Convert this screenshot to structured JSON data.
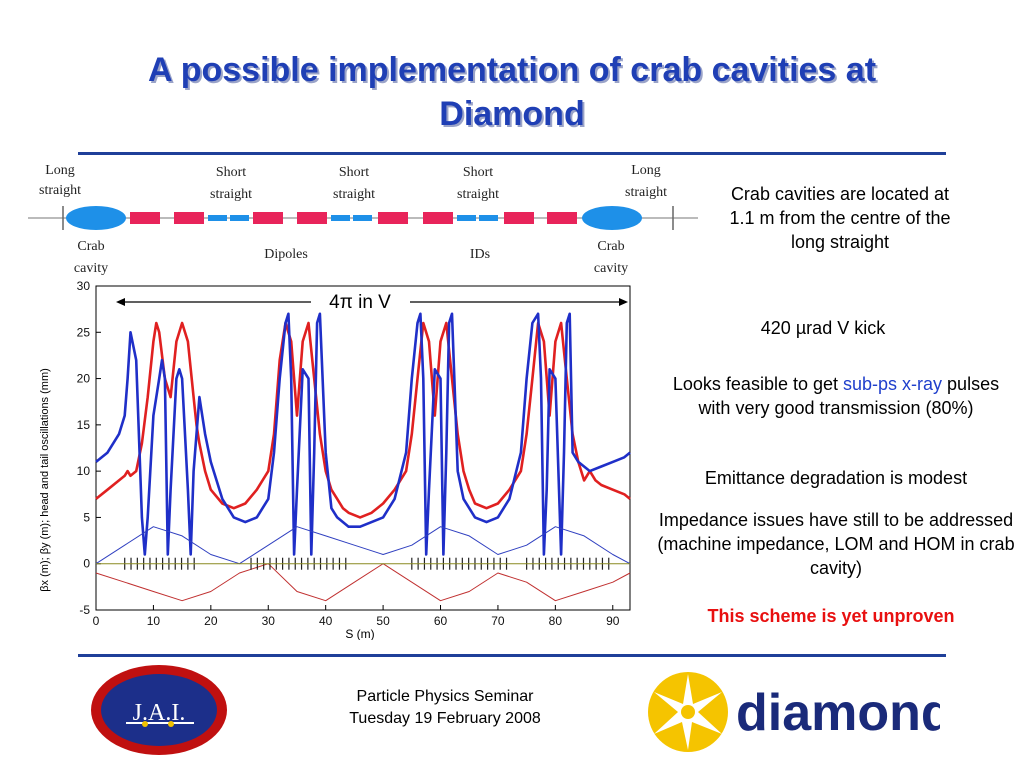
{
  "slide": {
    "title_line1": "A possible implementation of crab cavities at",
    "title_line2": "Diamond"
  },
  "lattice": {
    "labels": {
      "long_straight_left_1": "Long",
      "long_straight_left_2": "straight",
      "short_straight_1a": "Short",
      "short_straight_1b": "straight",
      "short_straight_2a": "Short",
      "short_straight_2b": "straight",
      "short_straight_3a": "Short",
      "short_straight_3b": "straight",
      "long_straight_right_1": "Long",
      "long_straight_right_2": "straight",
      "crab_left_1": "Crab",
      "crab_left_2": "cavity",
      "dipoles": "Dipoles",
      "ids": "IDs",
      "crab_right_1": "Crab",
      "crab_right_2": "cavity"
    },
    "colors": {
      "cavity": "#1e90e8",
      "dipole": "#e8245a",
      "quad": "#1e90e8"
    }
  },
  "annotations": {
    "crab_location": "Crab cavities are located at 1.1 m from the centre of the long straight",
    "kick": "420 µrad V kick",
    "feasible_pre": "Looks feasible to get ",
    "feasible_highlight": "sub-ps x-ray",
    "feasible_post": " pulses with very good transmission (80%)",
    "emittance": "Emittance degradation is modest",
    "impedance": "Impedance issues have still to be addressed (machine impedance, LOM and HOM in crab cavity)",
    "unproven": "This scheme is yet unproven"
  },
  "chart_data": {
    "type": "line",
    "xlabel": "S (m)",
    "ylabel": "βx (m); βy (m); head and tail oscillations (mm)",
    "xlim": [
      0,
      93
    ],
    "ylim": [
      -5,
      30
    ],
    "xticks": [
      0,
      10,
      20,
      30,
      40,
      50,
      60,
      70,
      80,
      90
    ],
    "yticks": [
      -5,
      0,
      5,
      10,
      15,
      20,
      25,
      30
    ],
    "span_label": "4π in V",
    "series": [
      {
        "color": "#e02020",
        "x": [
          0,
          2,
          4,
          5,
          5.5,
          6,
          7,
          8,
          9,
          10,
          10.5,
          11,
          12,
          13,
          14,
          15,
          16,
          17,
          17.5,
          18,
          19,
          20,
          22,
          24,
          26,
          28,
          30,
          31,
          32,
          33,
          34,
          35,
          36,
          37,
          38,
          39,
          40,
          41,
          42,
          43,
          44,
          46,
          48,
          50,
          52,
          54,
          55,
          56,
          57,
          58,
          59,
          60,
          61,
          62,
          63,
          64,
          65,
          66,
          68,
          70,
          72,
          74,
          75,
          76,
          77,
          78,
          79,
          80,
          81,
          82,
          83,
          84,
          85,
          86,
          87,
          88,
          90,
          92,
          93
        ],
        "y": [
          7,
          8,
          9,
          9.5,
          10,
          9.5,
          10,
          13,
          18,
          24,
          26,
          25,
          20,
          18,
          24,
          26,
          24,
          18,
          15,
          13,
          10,
          8,
          6.5,
          6,
          6.5,
          8,
          10,
          14,
          22,
          26,
          24,
          16,
          24,
          26,
          20,
          14,
          10,
          8,
          7,
          6,
          5.5,
          5,
          5.5,
          6.5,
          8,
          10,
          14,
          20,
          26,
          24,
          16,
          24,
          26,
          20,
          14,
          10,
          8,
          6.5,
          6,
          6.5,
          8,
          10,
          14,
          20,
          26,
          24,
          16,
          24,
          26,
          20,
          14,
          11,
          9,
          10,
          9,
          8.5,
          8,
          7.5,
          7
        ]
      },
      {
        "color": "#1f2fc8",
        "x": [
          0,
          2,
          4,
          5,
          5.5,
          6,
          7,
          8,
          8.5,
          9,
          10,
          11,
          11.5,
          12,
          12.5,
          13,
          14,
          14.5,
          15,
          16,
          16.5,
          17,
          18,
          19,
          20,
          22,
          24,
          26,
          28,
          30,
          31,
          32,
          33,
          33.5,
          34,
          34.5,
          35,
          36,
          37,
          37.5,
          38,
          38.5,
          39,
          40,
          41,
          42,
          44,
          46,
          48,
          50,
          52,
          54,
          55,
          56,
          56.5,
          57,
          57.5,
          58,
          59,
          60,
          60.5,
          61,
          61.5,
          62,
          63,
          64,
          66,
          68,
          70,
          72,
          74,
          75,
          76,
          77,
          77.5,
          78,
          78.5,
          79,
          80,
          81,
          81.5,
          82,
          82.5,
          83,
          84,
          86,
          88,
          90,
          92,
          93
        ],
        "y": [
          11,
          12,
          14,
          16,
          20,
          25,
          22,
          5,
          1,
          5,
          16,
          20,
          22,
          20,
          1,
          8,
          20,
          21,
          20,
          8,
          1,
          10,
          18,
          14,
          11,
          7,
          5,
          4.5,
          5,
          7,
          12,
          20,
          26,
          27,
          20,
          1,
          8,
          21,
          20,
          1,
          12,
          26,
          27,
          12,
          6,
          5,
          4,
          4,
          4.5,
          5,
          7,
          12,
          20,
          26,
          27,
          20,
          1,
          8,
          21,
          20,
          1,
          12,
          26,
          27,
          10,
          7,
          5,
          4.5,
          5,
          7,
          12,
          20,
          26,
          27,
          20,
          1,
          8,
          21,
          20,
          1,
          12,
          26,
          27,
          12,
          11,
          10,
          10.5,
          11,
          11.5,
          12
        ]
      },
      {
        "color": "#c03030",
        "x": [
          0,
          5,
          10,
          15,
          20,
          25,
          30,
          35,
          40,
          45,
          50,
          55,
          60,
          65,
          70,
          75,
          80,
          85,
          90,
          93
        ],
        "y": [
          -1,
          -2,
          -3,
          -4,
          -3,
          -1,
          0,
          -3,
          -4,
          -2,
          0,
          -2,
          -4,
          -3,
          -1,
          -2,
          -4,
          -3,
          -2,
          -1
        ]
      },
      {
        "color": "#3040c0",
        "x": [
          0,
          5,
          10,
          15,
          20,
          25,
          30,
          35,
          40,
          45,
          50,
          55,
          60,
          65,
          70,
          75,
          80,
          85,
          90,
          93
        ],
        "y": [
          0,
          2,
          4,
          3,
          1,
          0,
          2,
          4,
          3,
          2,
          1,
          2,
          4,
          3,
          1,
          2,
          4,
          3,
          1,
          0
        ]
      }
    ]
  },
  "footer": {
    "line1": "Particle Physics Seminar",
    "line2": "Tuesday 19 February 2008",
    "jai_logo": "J.A.I.",
    "diamond_logo": "diamond"
  }
}
